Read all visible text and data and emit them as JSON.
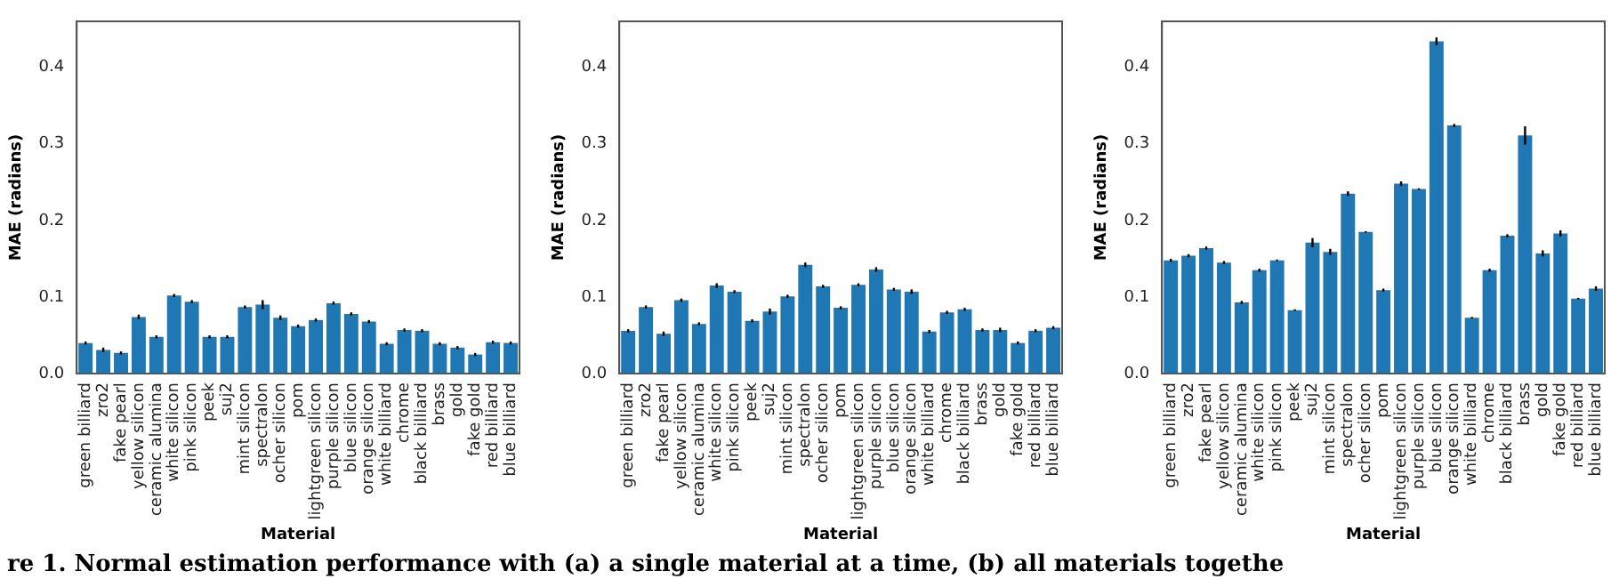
{
  "chart_data": [
    {
      "type": "bar",
      "xlabel": "Material",
      "ylabel": "MAE (radians)",
      "categories": [
        "green billiard",
        "zro2",
        "fake pearl",
        "yellow silicon",
        "ceramic alumina",
        "white silicon",
        "pink silicon",
        "peek",
        "suj2",
        "mint silicon",
        "spectralon",
        "ocher silicon",
        "pom",
        "lightgreen silicon",
        "purple silicon",
        "blue silicon",
        "orange silicon",
        "white billiard",
        "chrome",
        "black billiard",
        "brass",
        "gold",
        "fake gold",
        "red billiard",
        "blue billiard"
      ],
      "color": "#1f77b4",
      "values": [
        0.04,
        0.031,
        0.027,
        0.074,
        0.048,
        0.102,
        0.094,
        0.048,
        0.048,
        0.087,
        0.09,
        0.073,
        0.062,
        0.07,
        0.092,
        0.078,
        0.068,
        0.039,
        0.057,
        0.056,
        0.039,
        0.034,
        0.025,
        0.041,
        0.04
      ],
      "errors": [
        0.002,
        0.003,
        0.002,
        0.003,
        0.002,
        0.002,
        0.002,
        0.002,
        0.002,
        0.002,
        0.006,
        0.003,
        0.002,
        0.002,
        0.002,
        0.002,
        0.002,
        0.002,
        0.002,
        0.002,
        0.002,
        0.002,
        0.002,
        0.002,
        0.002
      ],
      "ylim": [
        0,
        0.46
      ],
      "yticks": [
        {
          "value": 0,
          "label": "0.0"
        },
        {
          "value": 0.1,
          "label": "0.1"
        },
        {
          "value": 0.2,
          "label": "0.2"
        },
        {
          "value": 0.3,
          "label": "0.3"
        },
        {
          "value": 0.4,
          "label": "0.4"
        }
      ],
      "grid": false,
      "legend": false
    },
    {
      "type": "bar",
      "xlabel": "Material",
      "ylabel": "MAE (radians)",
      "categories": [
        "green billiard",
        "zro2",
        "fake pearl",
        "yellow silicon",
        "ceramic alumina",
        "white silicon",
        "pink silicon",
        "peek",
        "suj2",
        "mint silicon",
        "spectralon",
        "ocher silicon",
        "pom",
        "lightgreen silicon",
        "purple silicon",
        "blue silicon",
        "orange silicon",
        "white billiard",
        "chrome",
        "black billiard",
        "brass",
        "gold",
        "fake gold",
        "red billiard",
        "blue billiard"
      ],
      "color": "#1f77b4",
      "values": [
        0.056,
        0.087,
        0.052,
        0.096,
        0.065,
        0.115,
        0.107,
        0.069,
        0.081,
        0.101,
        0.142,
        0.114,
        0.086,
        0.116,
        0.136,
        0.11,
        0.107,
        0.055,
        0.08,
        0.084,
        0.057,
        0.057,
        0.04,
        0.056,
        0.06
      ],
      "errors": [
        0.002,
        0.002,
        0.003,
        0.002,
        0.002,
        0.003,
        0.002,
        0.002,
        0.004,
        0.002,
        0.003,
        0.002,
        0.002,
        0.002,
        0.003,
        0.002,
        0.003,
        0.002,
        0.002,
        0.002,
        0.002,
        0.003,
        0.002,
        0.002,
        0.002
      ],
      "ylim": [
        0,
        0.46
      ],
      "yticks": [
        {
          "value": 0,
          "label": "0.0"
        },
        {
          "value": 0.1,
          "label": "0.1"
        },
        {
          "value": 0.2,
          "label": "0.2"
        },
        {
          "value": 0.3,
          "label": "0.3"
        },
        {
          "value": 0.4,
          "label": "0.4"
        }
      ],
      "grid": false,
      "legend": false
    },
    {
      "type": "bar",
      "xlabel": "Material",
      "ylabel": "MAE (radians)",
      "categories": [
        "green billiard",
        "zro2",
        "fake pearl",
        "yellow silicon",
        "ceramic alumina",
        "white silicon",
        "pink silicon",
        "peek",
        "suj2",
        "mint silicon",
        "spectralon",
        "ocher silicon",
        "pom",
        "lightgreen silicon",
        "purple silicon",
        "blue silicon",
        "orange silicon",
        "white billiard",
        "chrome",
        "black billiard",
        "brass",
        "gold",
        "fake gold",
        "red billiard",
        "blue billiard"
      ],
      "color": "#1f77b4",
      "values": [
        0.148,
        0.154,
        0.164,
        0.145,
        0.093,
        0.135,
        0.148,
        0.083,
        0.171,
        0.159,
        0.235,
        0.185,
        0.109,
        0.248,
        0.241,
        0.434,
        0.324,
        0.073,
        0.135,
        0.18,
        0.311,
        0.157,
        0.183,
        0.098,
        0.111
      ],
      "errors": [
        0.002,
        0.002,
        0.002,
        0.002,
        0.002,
        0.002,
        0.001,
        0.001,
        0.006,
        0.004,
        0.003,
        0.001,
        0.002,
        0.003,
        0.001,
        0.005,
        0.002,
        0.001,
        0.002,
        0.002,
        0.012,
        0.004,
        0.004,
        0.001,
        0.003
      ],
      "ylim": [
        0,
        0.46
      ],
      "yticks": [
        {
          "value": 0,
          "label": "0.0"
        },
        {
          "value": 0.1,
          "label": "0.1"
        },
        {
          "value": 0.2,
          "label": "0.2"
        },
        {
          "value": 0.3,
          "label": "0.3"
        },
        {
          "value": 0.4,
          "label": "0.4"
        }
      ],
      "grid": false,
      "legend": false,
      "annotations": [
        "re 1. Normal estimation performance with (a) a single material at a time, (b) all materials togethe"
      ]
    }
  ]
}
